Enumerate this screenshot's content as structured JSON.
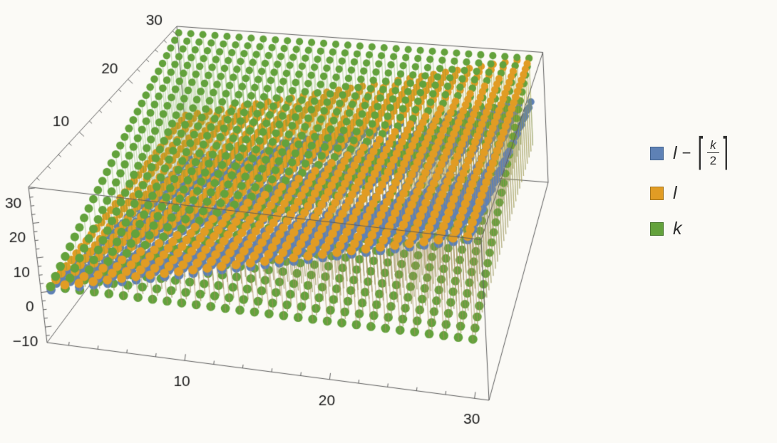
{
  "page": {
    "background": "#fbfaf6"
  },
  "chart_data": {
    "type": "scatter",
    "subtype": "3d-stem-point-plot",
    "title": "",
    "domain_grid": {
      "k": [
        1,
        30
      ],
      "l": [
        1,
        30
      ],
      "step": 1
    },
    "filling": "vertical stems from each point to the z=0 plane",
    "series": [
      {
        "id": "l_minus_ceil_k_over_2",
        "formula": "l - ceil(k/2)",
        "color": "#5e81b5",
        "stem_color": "rgba(94,129,181,0.34)",
        "z_min": -14,
        "z_max": 29
      },
      {
        "id": "l",
        "formula": "l",
        "color": "#e19c24",
        "stem_color": "rgba(225,156,36,0.34)",
        "z_min": 1,
        "z_max": 30
      },
      {
        "id": "k",
        "formula": "k",
        "color": "#63a23c",
        "stem_color": "rgba(99,162,60,0.34)",
        "z_min": 1,
        "z_max": 30
      }
    ],
    "x_axis": {
      "variable": "l",
      "tick_labels": [
        10,
        20,
        30
      ],
      "minor_tick_step": 2,
      "range": [
        0.5,
        31
      ]
    },
    "y_axis": {
      "variable": "k",
      "tick_labels": [
        10,
        20,
        30
      ],
      "minor_tick_step": 2,
      "range": [
        0.5,
        31
      ]
    },
    "z_axis": {
      "tick_labels": [
        -10,
        0,
        10,
        20,
        30
      ],
      "minor_tick_step": 2.5,
      "range": [
        -14.5,
        30.5
      ]
    },
    "boxed": true,
    "grid": false,
    "legend_position": "right",
    "axis_label_color": "#1b1b1b",
    "box_edge_color": "#5c5c5c"
  },
  "legend": {
    "text_color": "#2e2e2e",
    "items": [
      {
        "type": "expression",
        "color": "#5e81b5",
        "border": "#41618e",
        "var": "l",
        "op": "−",
        "lceil": "⌈",
        "num": "k",
        "den": "2",
        "rceil": "⌉",
        "reading": "l - ceil(k/2)"
      },
      {
        "type": "plain",
        "color": "#e19c24",
        "border": "#a3731a",
        "label": "l"
      },
      {
        "type": "plain",
        "color": "#63a23c",
        "border": "#48772d",
        "label": "k"
      }
    ]
  }
}
